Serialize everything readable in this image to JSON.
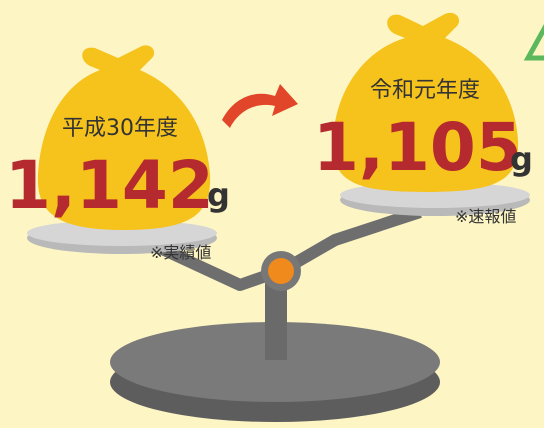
{
  "left": {
    "label": "平成30年度",
    "amount": "1,142",
    "unit": "g",
    "note": "※実績値"
  },
  "right": {
    "label": "令和元年度",
    "amount": "1,105",
    "unit": "g",
    "note": "※速報値"
  }
}
